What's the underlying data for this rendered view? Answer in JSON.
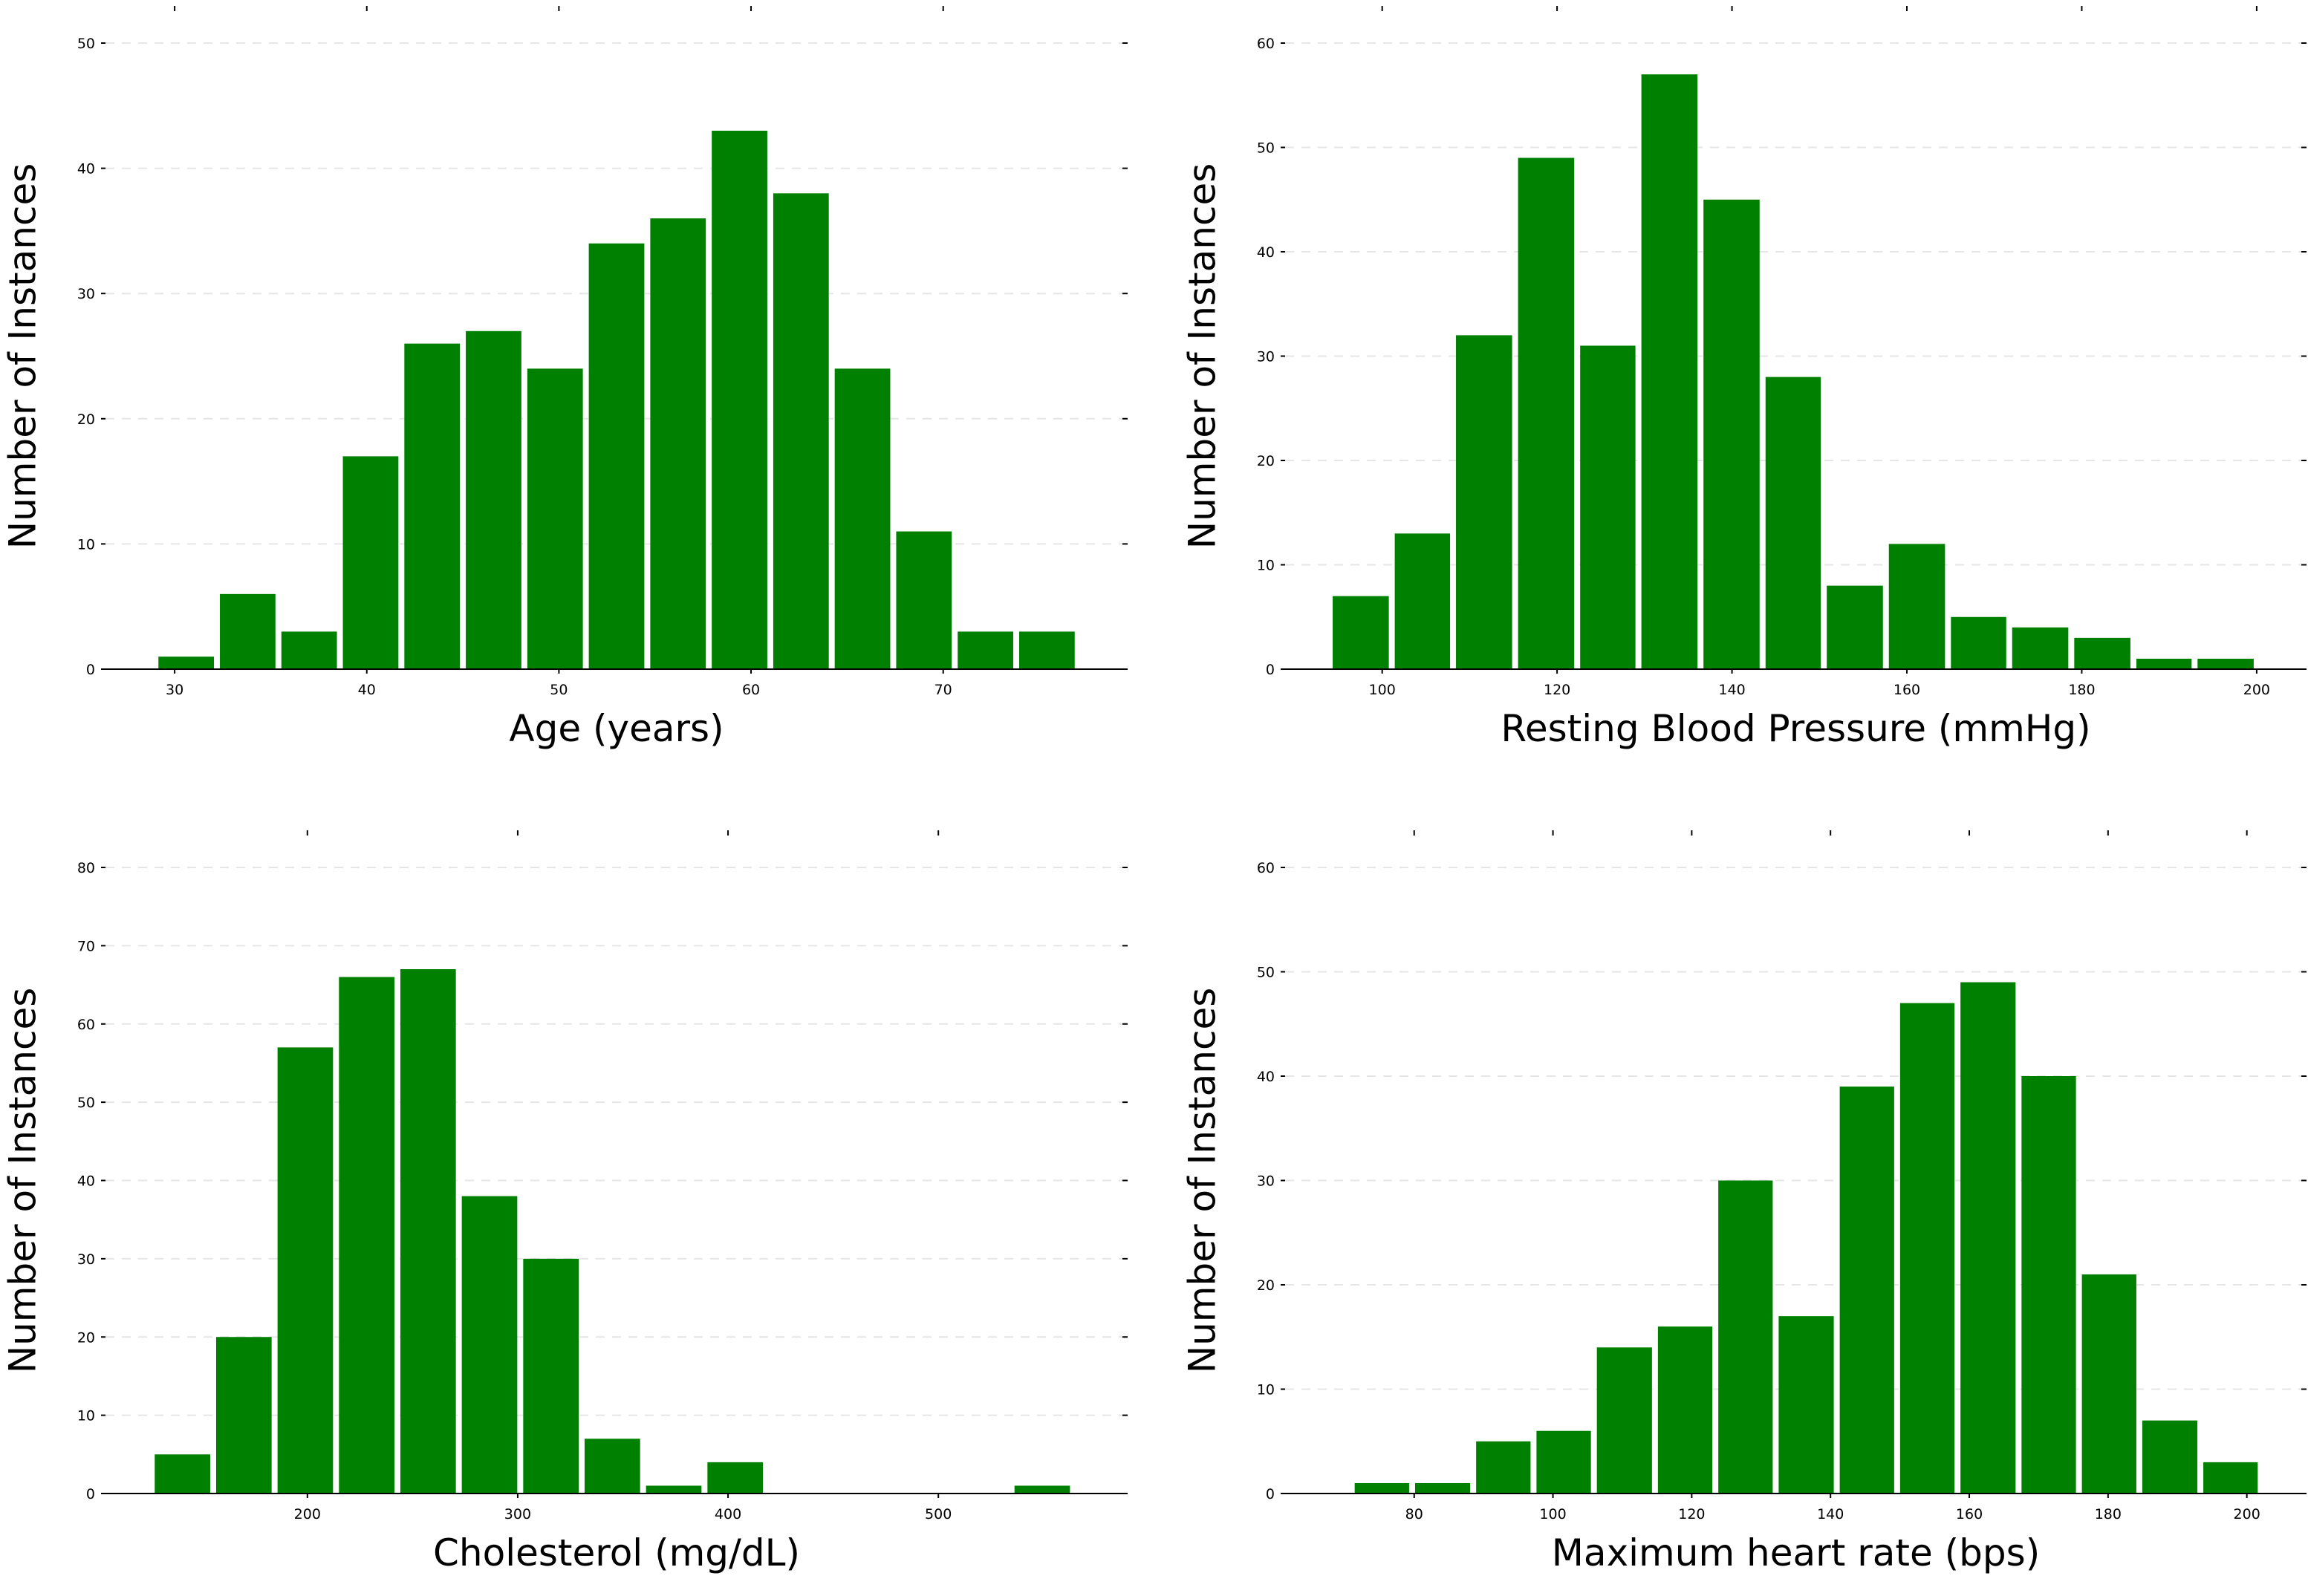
{
  "bar_color": "#008000",
  "grid_color": "#e6e6e6",
  "chart_data": [
    {
      "type": "bar",
      "title": "",
      "xlabel": "Age (years)",
      "ylabel": "Number of Instances",
      "xlim": [
        26.4,
        79.6
      ],
      "ylim": [
        0,
        50
      ],
      "xticks": [
        30,
        40,
        50,
        60,
        70
      ],
      "yticks": [
        0,
        10,
        20,
        30,
        40,
        50
      ],
      "grid": true,
      "bins": [
        {
          "x0": 29.0,
          "x1": 32.2,
          "value": 1
        },
        {
          "x0": 32.2,
          "x1": 35.4,
          "value": 6
        },
        {
          "x0": 35.4,
          "x1": 38.6,
          "value": 3
        },
        {
          "x0": 38.6,
          "x1": 41.8,
          "value": 17
        },
        {
          "x0": 41.8,
          "x1": 45.0,
          "value": 26
        },
        {
          "x0": 45.0,
          "x1": 48.2,
          "value": 27
        },
        {
          "x0": 48.2,
          "x1": 51.4,
          "value": 24
        },
        {
          "x0": 51.4,
          "x1": 54.6,
          "value": 34
        },
        {
          "x0": 54.6,
          "x1": 57.8,
          "value": 36
        },
        {
          "x0": 57.8,
          "x1": 61.0,
          "value": 43
        },
        {
          "x0": 61.0,
          "x1": 64.2,
          "value": 38
        },
        {
          "x0": 64.2,
          "x1": 67.4,
          "value": 24
        },
        {
          "x0": 67.4,
          "x1": 70.6,
          "value": 11
        },
        {
          "x0": 70.6,
          "x1": 73.8,
          "value": 3
        },
        {
          "x0": 73.8,
          "x1": 77.0,
          "value": 3
        }
      ]
    },
    {
      "type": "bar",
      "title": "",
      "xlabel": "Resting Blood Pressure (mmHg)",
      "ylabel": "Number of Instances",
      "xlim": [
        88.9,
        205.7
      ],
      "ylim": [
        0,
        60
      ],
      "xticks": [
        100,
        120,
        140,
        160,
        180,
        200
      ],
      "yticks": [
        0,
        10,
        20,
        30,
        40,
        50,
        60
      ],
      "grid": true,
      "bins": [
        {
          "x0": 94.0,
          "x1": 101.1,
          "value": 7
        },
        {
          "x0": 101.1,
          "x1": 108.1,
          "value": 13
        },
        {
          "x0": 108.1,
          "x1": 115.2,
          "value": 32
        },
        {
          "x0": 115.2,
          "x1": 122.3,
          "value": 49
        },
        {
          "x0": 122.3,
          "x1": 129.3,
          "value": 31
        },
        {
          "x0": 129.3,
          "x1": 136.4,
          "value": 57
        },
        {
          "x0": 136.4,
          "x1": 143.5,
          "value": 45
        },
        {
          "x0": 143.5,
          "x1": 150.5,
          "value": 28
        },
        {
          "x0": 150.5,
          "x1": 157.6,
          "value": 8
        },
        {
          "x0": 157.6,
          "x1": 164.7,
          "value": 12
        },
        {
          "x0": 164.7,
          "x1": 171.7,
          "value": 5
        },
        {
          "x0": 171.7,
          "x1": 178.8,
          "value": 4
        },
        {
          "x0": 178.8,
          "x1": 185.9,
          "value": 3
        },
        {
          "x0": 185.9,
          "x1": 192.9,
          "value": 1
        },
        {
          "x0": 192.9,
          "x1": 200.0,
          "value": 1
        }
      ]
    },
    {
      "type": "bar",
      "title": "",
      "xlabel": "Cholesterol (mg/dL)",
      "ylabel": "Number of Instances",
      "xlim": [
        104,
        590
      ],
      "ylim": [
        0,
        80
      ],
      "xticks": [
        200,
        300,
        400,
        500
      ],
      "yticks": [
        0,
        10,
        20,
        30,
        40,
        50,
        60,
        70,
        80
      ],
      "grid": true,
      "bins": [
        {
          "x0": 126.0,
          "x1": 155.2,
          "value": 5
        },
        {
          "x0": 155.2,
          "x1": 184.4,
          "value": 20
        },
        {
          "x0": 184.4,
          "x1": 213.6,
          "value": 57
        },
        {
          "x0": 213.6,
          "x1": 242.8,
          "value": 66
        },
        {
          "x0": 242.8,
          "x1": 272.0,
          "value": 67
        },
        {
          "x0": 272.0,
          "x1": 301.2,
          "value": 38
        },
        {
          "x0": 301.2,
          "x1": 330.4,
          "value": 30
        },
        {
          "x0": 330.4,
          "x1": 359.6,
          "value": 7
        },
        {
          "x0": 359.6,
          "x1": 388.8,
          "value": 1
        },
        {
          "x0": 388.8,
          "x1": 418.0,
          "value": 4
        },
        {
          "x0": 418.0,
          "x1": 447.2,
          "value": 0
        },
        {
          "x0": 447.2,
          "x1": 476.4,
          "value": 0
        },
        {
          "x0": 476.4,
          "x1": 505.6,
          "value": 0
        },
        {
          "x0": 505.6,
          "x1": 534.8,
          "value": 0
        },
        {
          "x0": 534.8,
          "x1": 564.0,
          "value": 1
        }
      ]
    },
    {
      "type": "bar",
      "title": "",
      "xlabel": "Maximum heart rate (bps)",
      "ylabel": "Number of Instances",
      "xlim": [
        61.4,
        208.6
      ],
      "ylim": [
        0,
        60
      ],
      "xticks": [
        80,
        100,
        120,
        140,
        160,
        180,
        200
      ],
      "yticks": [
        0,
        10,
        20,
        30,
        40,
        50,
        60
      ],
      "grid": true,
      "bins": [
        {
          "x0": 71.0,
          "x1": 79.7,
          "value": 1
        },
        {
          "x0": 79.7,
          "x1": 88.5,
          "value": 1
        },
        {
          "x0": 88.5,
          "x1": 97.2,
          "value": 5
        },
        {
          "x0": 97.2,
          "x1": 105.9,
          "value": 6
        },
        {
          "x0": 105.9,
          "x1": 114.7,
          "value": 14
        },
        {
          "x0": 114.7,
          "x1": 123.4,
          "value": 16
        },
        {
          "x0": 123.4,
          "x1": 132.1,
          "value": 30
        },
        {
          "x0": 132.1,
          "x1": 140.9,
          "value": 17
        },
        {
          "x0": 140.9,
          "x1": 149.6,
          "value": 39
        },
        {
          "x0": 149.6,
          "x1": 158.3,
          "value": 47
        },
        {
          "x0": 158.3,
          "x1": 167.1,
          "value": 49
        },
        {
          "x0": 167.1,
          "x1": 175.8,
          "value": 40
        },
        {
          "x0": 175.8,
          "x1": 184.5,
          "value": 21
        },
        {
          "x0": 184.5,
          "x1": 193.3,
          "value": 7
        },
        {
          "x0": 193.3,
          "x1": 202.0,
          "value": 3
        }
      ]
    }
  ]
}
